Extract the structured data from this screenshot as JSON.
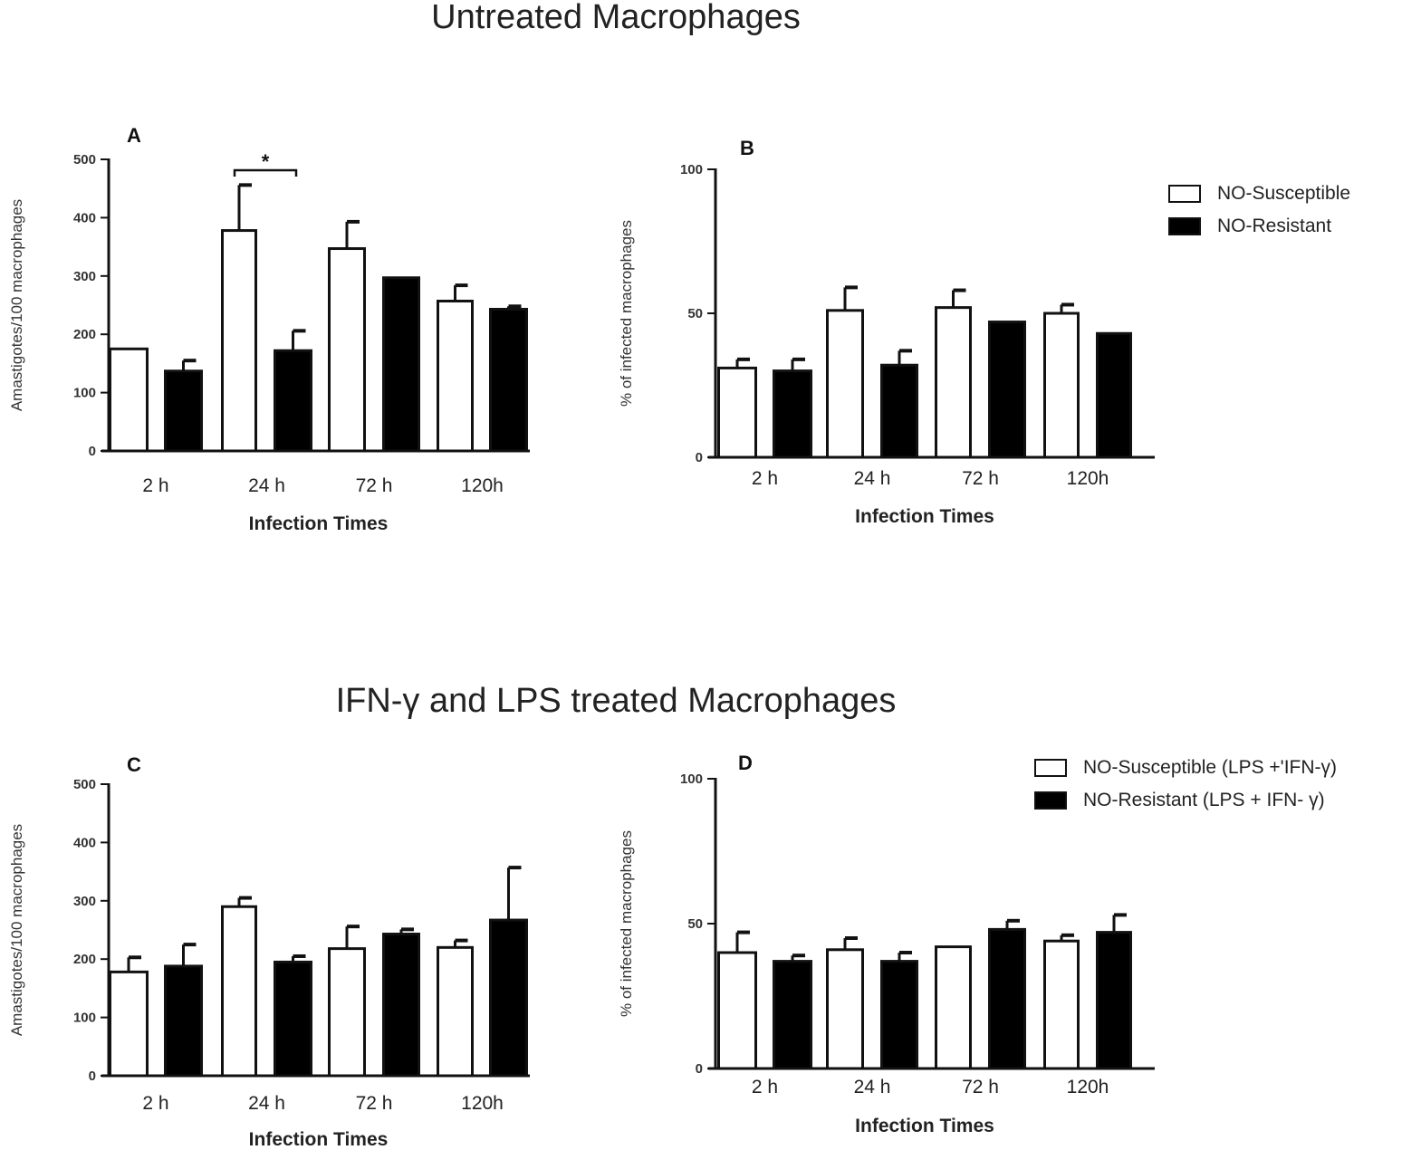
{
  "titles": {
    "top": "Untreated Macrophages",
    "bottom": "IFN-γ and LPS treated Macrophages"
  },
  "legend_top": {
    "susceptible": "NO-Susceptible",
    "resistant": "NO-Resistant"
  },
  "legend_bottom": {
    "susceptible": "NO-Susceptible (LPS +'IFN-γ)",
    "resistant": "NO-Resistant (LPS + IFN- γ)"
  },
  "colors": {
    "susceptible": "#ffffff",
    "resistant": "#000000",
    "axis": "#111111"
  },
  "chart_data": [
    {
      "panel": "A",
      "type": "bar",
      "categories": [
        "2 h",
        "24 h",
        "72 h",
        "120h"
      ],
      "series": [
        {
          "name": "NO-Susceptible",
          "values": [
            175,
            378,
            347,
            257
          ],
          "errors": [
            0,
            78,
            46,
            27
          ]
        },
        {
          "name": "NO-Resistant",
          "values": [
            137,
            172,
            297,
            243
          ],
          "errors": [
            18,
            34,
            0,
            5
          ]
        }
      ],
      "xlabel": "Infection Times",
      "ylabel": "Amastigotes/100 macrophages",
      "ylim": [
        0,
        500
      ],
      "yticks": [
        0,
        100,
        200,
        300,
        400,
        500
      ],
      "annotation": "*"
    },
    {
      "panel": "B",
      "type": "bar",
      "categories": [
        "2 h",
        "24 h",
        "72 h",
        "120h"
      ],
      "series": [
        {
          "name": "NO-Susceptible",
          "values": [
            31,
            51,
            52,
            50
          ],
          "errors": [
            3,
            8,
            6,
            3
          ]
        },
        {
          "name": "NO-Resistant",
          "values": [
            30,
            32,
            47,
            43
          ],
          "errors": [
            4,
            5,
            0,
            0
          ]
        }
      ],
      "xlabel": "Infection Times",
      "ylabel": "% of infected macrophages",
      "ylim": [
        0,
        100
      ],
      "yticks": [
        0,
        50,
        100
      ]
    },
    {
      "panel": "C",
      "type": "bar",
      "categories": [
        "2 h",
        "24 h",
        "72 h",
        "120h"
      ],
      "series": [
        {
          "name": "NO-Susceptible (LPS +'IFN-γ)",
          "values": [
            178,
            290,
            218,
            220
          ],
          "errors": [
            25,
            15,
            38,
            12
          ]
        },
        {
          "name": "NO-Resistant (LPS + IFN- γ)",
          "values": [
            188,
            195,
            243,
            267
          ],
          "errors": [
            37,
            10,
            8,
            90
          ]
        }
      ],
      "xlabel": "Infection Times",
      "ylabel": "Amastigotes/100 macrophages",
      "ylim": [
        0,
        500
      ],
      "yticks": [
        0,
        100,
        200,
        300,
        400,
        500
      ]
    },
    {
      "panel": "D",
      "type": "bar",
      "categories": [
        "2 h",
        "24 h",
        "72 h",
        "120h"
      ],
      "series": [
        {
          "name": "NO-Susceptible (LPS +'IFN-γ)",
          "values": [
            40,
            41,
            42,
            44
          ],
          "errors": [
            7,
            4,
            0,
            2
          ]
        },
        {
          "name": "NO-Resistant (LPS + IFN- γ)",
          "values": [
            37,
            37,
            48,
            47
          ],
          "errors": [
            2,
            3,
            3,
            6
          ]
        }
      ],
      "xlabel": "Infection Times",
      "ylabel": "% of infected macrophages",
      "ylim": [
        0,
        100
      ],
      "yticks": [
        0,
        50,
        100
      ]
    }
  ]
}
